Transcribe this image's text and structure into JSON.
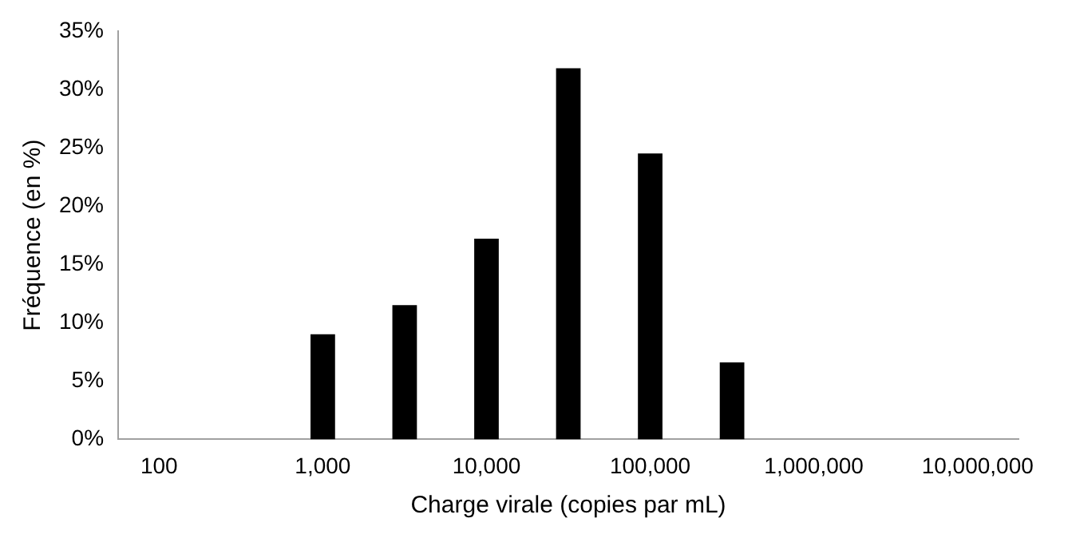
{
  "chart_data": {
    "type": "bar",
    "xlabel": "Charge virale (copies par mL)",
    "ylabel": "Fréquence (en %)",
    "categories": [
      "100",
      null,
      "1,000",
      null,
      "10,000",
      null,
      "100,000",
      null,
      "1,000,000",
      null,
      "10,000,000"
    ],
    "values": [
      0,
      0,
      9,
      11.5,
      17.2,
      31.8,
      24.5,
      6.6,
      0,
      0,
      0
    ],
    "color": "#000000",
    "ylim": [
      0,
      35
    ],
    "yticks": [
      {
        "value": 0,
        "label": "0%"
      },
      {
        "value": 5,
        "label": "5%"
      },
      {
        "value": 10,
        "label": "10%"
      },
      {
        "value": 15,
        "label": "15%"
      },
      {
        "value": 20,
        "label": "20%"
      },
      {
        "value": 25,
        "label": "25%"
      },
      {
        "value": 30,
        "label": "30%"
      },
      {
        "value": 35,
        "label": "35%"
      }
    ],
    "grid": false,
    "legend": false
  }
}
